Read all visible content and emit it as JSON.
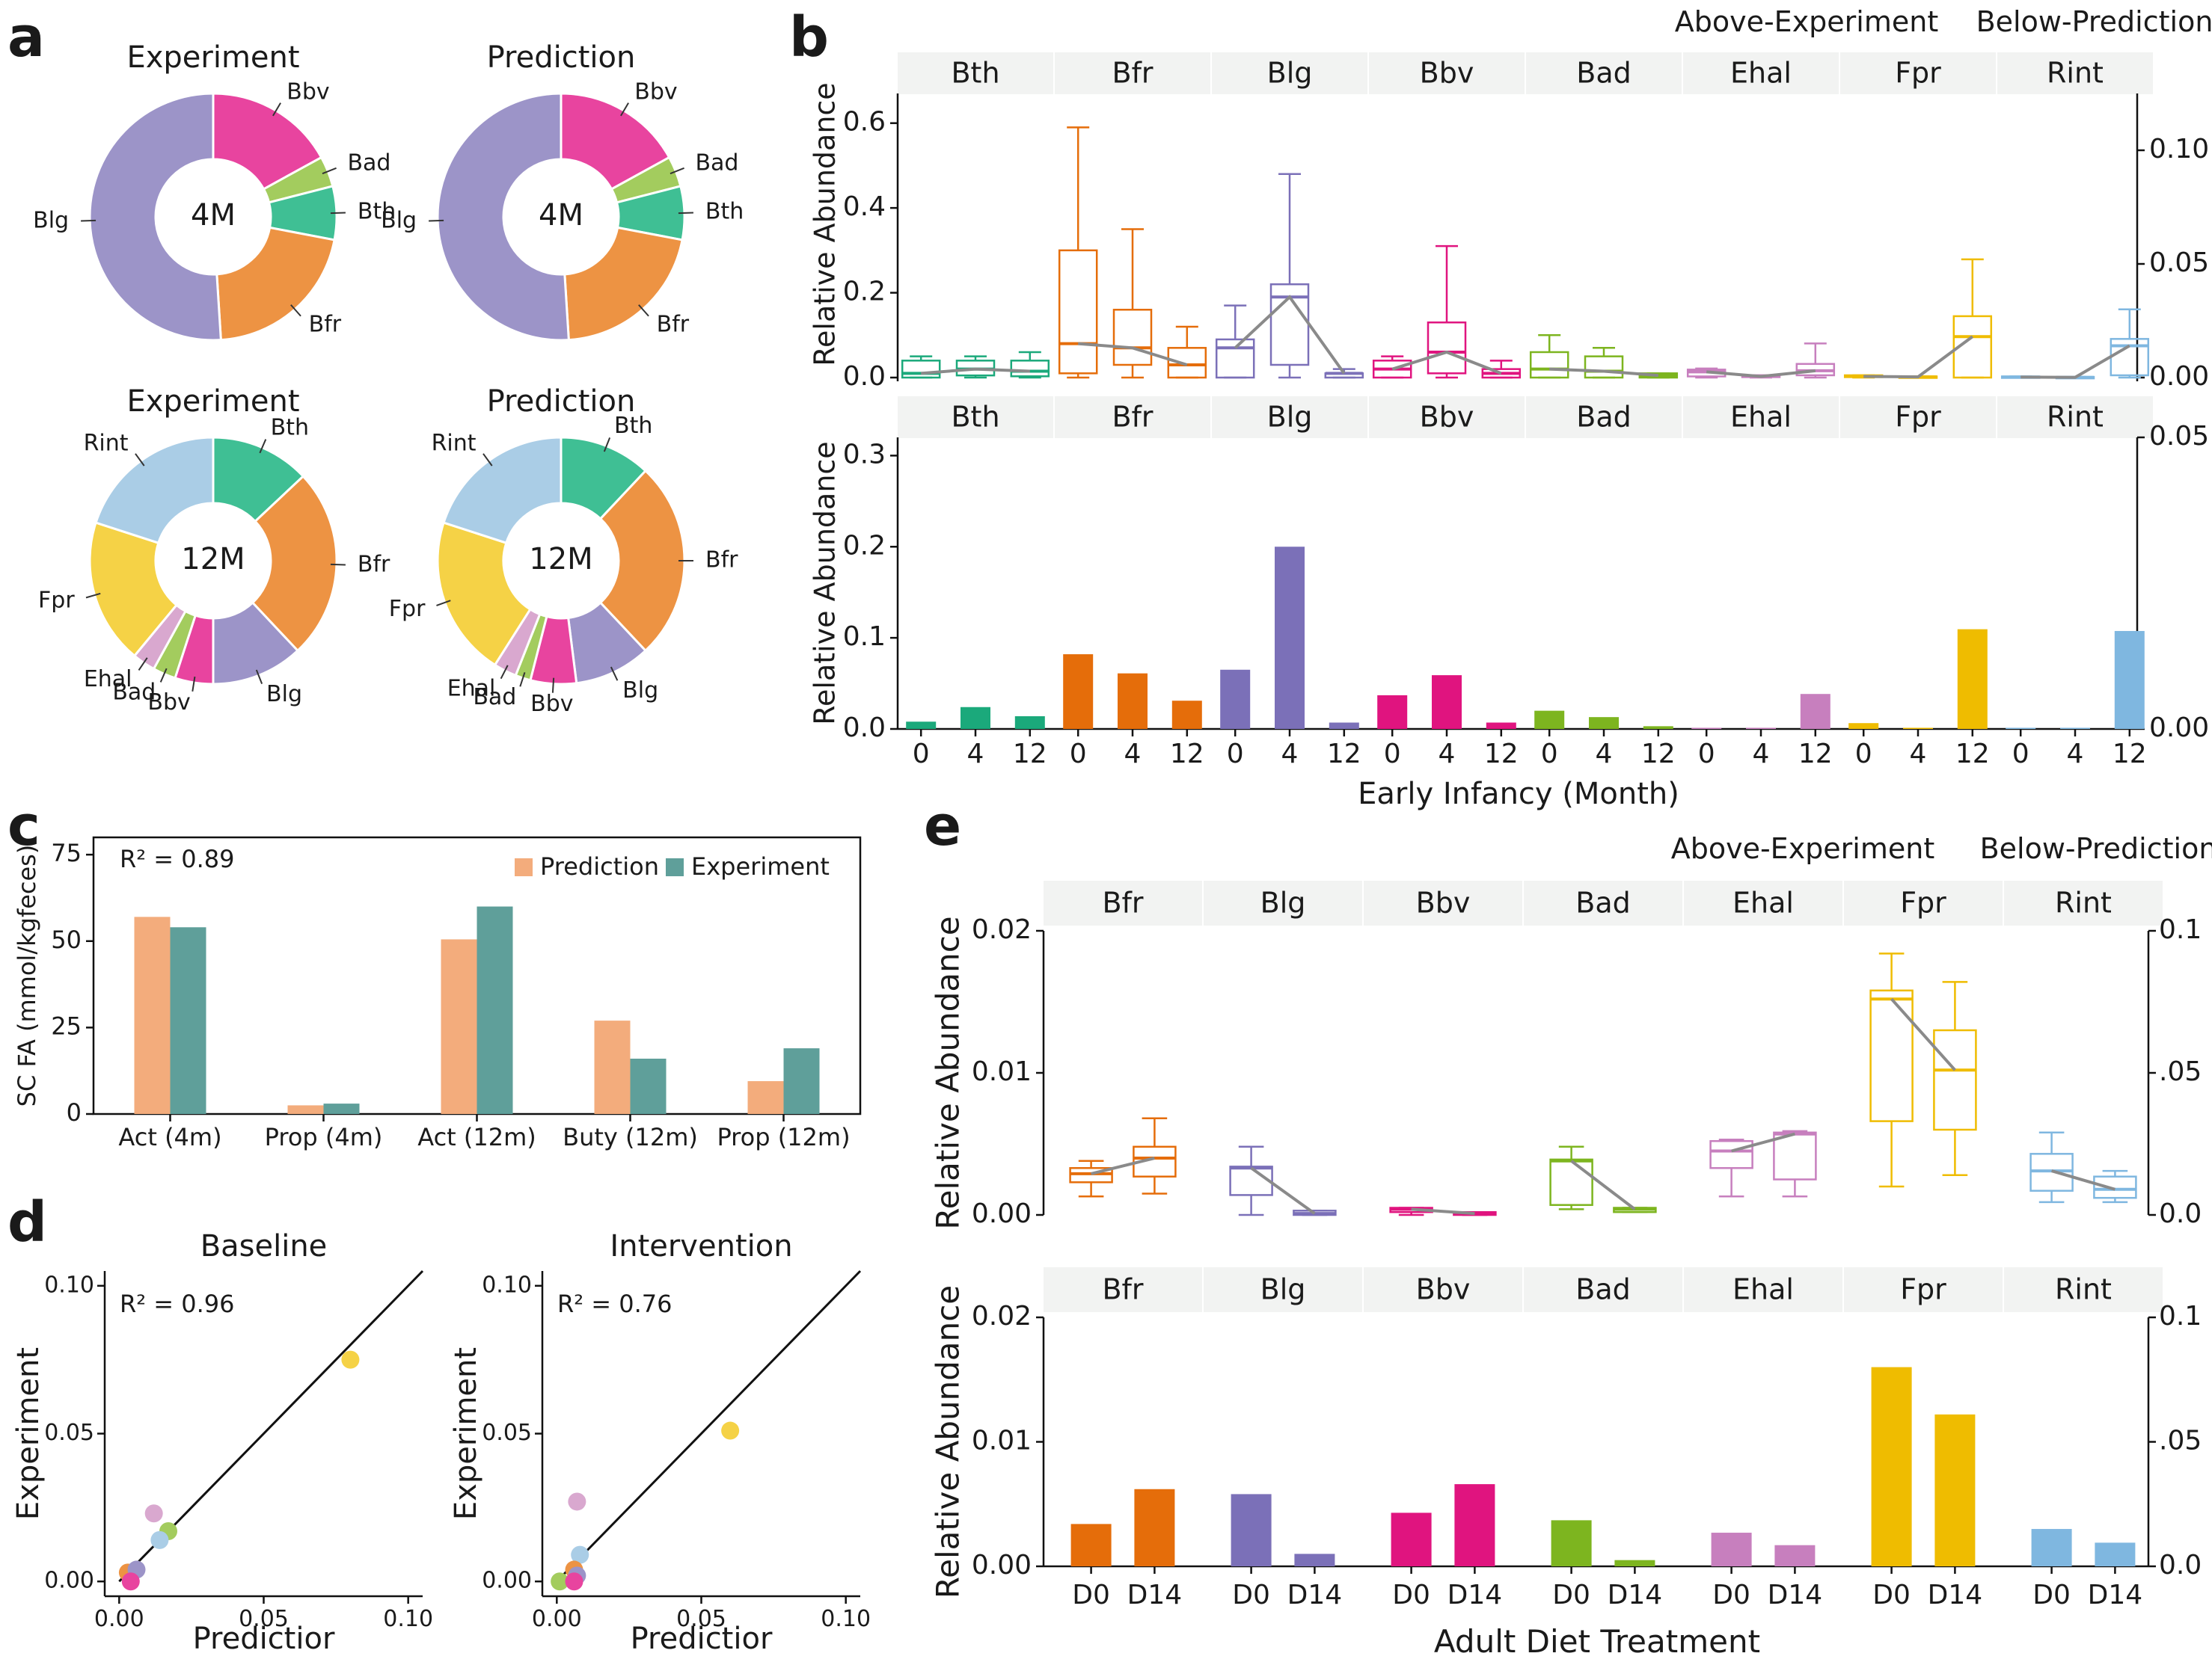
{
  "colors": {
    "Bth": "#3fbf94",
    "Bfr": "#ed9343",
    "Blg": "#9c94c8",
    "Bbv": "#e8449f",
    "Bad": "#a3cc5e",
    "Ehal": "#d9a8cf",
    "Fpr": "#f5d246",
    "Rint": "#aacde6",
    "box": {
      "Bth": "#1ba97b",
      "Bfr": "#e56d0a",
      "Blg": "#7b70b8",
      "Bbv": "#e0147f",
      "Bad": "#7db51f",
      "Ehal": "#c77fbe",
      "Fpr": "#efbc00",
      "Rint": "#7fb7e0"
    },
    "prediction_bar": "#f3ac7c",
    "experiment_bar": "#5f9f9a"
  },
  "panel_labels": {
    "a": "a",
    "b": "b",
    "c": "c",
    "d": "d",
    "e": "e"
  },
  "chart_data": [
    {
      "panel": "a",
      "type": "pie",
      "donuts": [
        {
          "title": "Experiment",
          "center": "4M",
          "labels": [
            "Bbv",
            "Bad",
            "Bth",
            "Bfr",
            "Blg"
          ],
          "values": [
            17,
            4,
            7,
            21,
            51
          ]
        },
        {
          "title": "Prediction",
          "center": "4M",
          "labels": [
            "Bbv",
            "Bad",
            "Bth",
            "Bfr",
            "Blg"
          ],
          "values": [
            17,
            4,
            7,
            21,
            51
          ]
        },
        {
          "title": "Experiment",
          "center": "12M",
          "labels": [
            "Bth",
            "Bfr",
            "Blg",
            "Bbv",
            "Bad",
            "Ehal",
            "Fpr",
            "Rint"
          ],
          "values": [
            13,
            25,
            12,
            5,
            3,
            3,
            19,
            20
          ]
        },
        {
          "title": "Prediction",
          "center": "12M",
          "labels": [
            "Bth",
            "Bfr",
            "Blg",
            "Bbv",
            "Bad",
            "Ehal",
            "Fpr",
            "Rint"
          ],
          "values": [
            12,
            26,
            10,
            6,
            2,
            3,
            21,
            20
          ]
        }
      ]
    },
    {
      "panel": "b",
      "type": "bar",
      "legend_left": "Above-Experiment",
      "legend_right": "Below-Prediction",
      "species": [
        "Bth",
        "Bfr",
        "Blg",
        "Bbv",
        "Bad",
        "Ehal",
        "Fpr",
        "Rint"
      ],
      "categories": [
        "0",
        "4",
        "12"
      ],
      "xlabel": "Early Infancy (Month)",
      "ylabel": "Relative Abundance",
      "top_left_ylim": [
        0,
        0.67
      ],
      "top_left_yticks": [
        "0.0",
        "0.2",
        "0.4",
        "0.6"
      ],
      "top_right_ylim": [
        0,
        0.125
      ],
      "top_right_yticks": [
        "0.00",
        "0.05",
        "0.10"
      ],
      "bottom_left_ylim": [
        0,
        0.32
      ],
      "bottom_left_yticks": [
        "0.0",
        "0.1",
        "0.2",
        "0.3"
      ],
      "bottom_right_ylim": [
        0,
        0.05
      ],
      "bottom_right_yticks": [
        "0.00",
        "0.05"
      ],
      "experiment_boxes": [
        {
          "name": "Bth",
          "median": [
            0.01,
            0.02,
            0.015
          ],
          "q1": [
            0.0,
            0.005,
            0.003
          ],
          "q3": [
            0.04,
            0.04,
            0.04
          ],
          "wlo": [
            0.0,
            0.0,
            0.0
          ],
          "whi": [
            0.05,
            0.05,
            0.06
          ]
        },
        {
          "name": "Bfr",
          "median": [
            0.08,
            0.07,
            0.03
          ],
          "q1": [
            0.01,
            0.03,
            0.0
          ],
          "q3": [
            0.3,
            0.16,
            0.07
          ],
          "wlo": [
            0.0,
            0.0,
            0.0
          ],
          "whi": [
            0.59,
            0.35,
            0.12
          ]
        },
        {
          "name": "Blg",
          "median": [
            0.07,
            0.19,
            0.01
          ],
          "q1": [
            0.0,
            0.03,
            0.0
          ],
          "q3": [
            0.09,
            0.22,
            0.01
          ],
          "wlo": [
            0.0,
            0.0,
            0.0
          ],
          "whi": [
            0.17,
            0.48,
            0.02
          ]
        },
        {
          "name": "Bbv",
          "median": [
            0.02,
            0.06,
            0.01
          ],
          "q1": [
            0.0,
            0.01,
            0.0
          ],
          "q3": [
            0.04,
            0.13,
            0.02
          ],
          "wlo": [
            0.0,
            0.0,
            0.0
          ],
          "whi": [
            0.05,
            0.31,
            0.04
          ]
        },
        {
          "name": "Bad",
          "median": [
            0.02,
            0.015,
            0.005
          ],
          "q1": [
            0.0,
            0.0,
            0.0
          ],
          "q3": [
            0.06,
            0.05,
            0.01
          ],
          "wlo": [
            0.0,
            0.0,
            0.0
          ],
          "whi": [
            0.1,
            0.07,
            0.01
          ]
        },
        {
          "name": "Ehal",
          "median": [
            0.0025,
            0.0005,
            0.003
          ],
          "q1": [
            0.0005,
            0.0002,
            0.001
          ],
          "q3": [
            0.0035,
            0.001,
            0.006
          ],
          "wlo": [
            0.0,
            0.0,
            0.0
          ],
          "whi": [
            0.004,
            0.001,
            0.015
          ]
        },
        {
          "name": "Fpr",
          "median": [
            0.0005,
            0.0003,
            0.018
          ],
          "q1": [
            0.0002,
            0.0001,
            0.0
          ],
          "q3": [
            0.001,
            0.0005,
            0.027
          ],
          "wlo": [
            0.0,
            0.0,
            0.0
          ],
          "whi": [
            0.001,
            0.0005,
            0.052
          ]
        },
        {
          "name": "Rint",
          "median": [
            0.0002,
            0.0001,
            0.014
          ],
          "q1": [
            0.0001,
            0.0,
            0.001
          ],
          "q3": [
            0.0005,
            0.0003,
            0.017
          ],
          "wlo": [
            0.0,
            0.0,
            0.0
          ],
          "whi": [
            0.0005,
            0.0003,
            0.03
          ]
        }
      ],
      "prediction_bars": [
        {
          "name": "Bth",
          "values": [
            0.008,
            0.024,
            0.014
          ]
        },
        {
          "name": "Bfr",
          "values": [
            0.082,
            0.061,
            0.031
          ]
        },
        {
          "name": "Blg",
          "values": [
            0.065,
            0.2,
            0.007
          ]
        },
        {
          "name": "Bbv",
          "values": [
            0.037,
            0.059,
            0.007
          ]
        },
        {
          "name": "Bad",
          "values": [
            0.02,
            0.013,
            0.003
          ]
        },
        {
          "name": "Ehal",
          "values": [
            0.0002,
            0.0002,
            0.006
          ]
        },
        {
          "name": "Fpr",
          "values": [
            0.001,
            0.0002,
            0.0171
          ]
        },
        {
          "name": "Rint",
          "values": [
            0.0002,
            0.0002,
            0.0168
          ]
        }
      ]
    },
    {
      "panel": "c",
      "type": "bar",
      "r2": "R² = 0.89",
      "ylabel": "SC FA (mmol/kgfeces)",
      "ylim": [
        0,
        80
      ],
      "yticks": [
        "0",
        "25",
        "50",
        "75"
      ],
      "categories": [
        "Act (4m)",
        "Prop (4m)",
        "Act (12m)",
        "Buty (12m)",
        "Prop (12m)"
      ],
      "series": [
        {
          "name": "Prediction",
          "values": [
            57,
            2.5,
            50.5,
            27,
            9.5
          ]
        },
        {
          "name": "Experiment",
          "values": [
            54,
            3,
            60,
            16,
            19
          ]
        }
      ]
    },
    {
      "panel": "d",
      "type": "scatter",
      "plots": [
        {
          "title": "Baseline",
          "r2": "R² = 0.96",
          "xlabel": "Predictior",
          "ylabel": "Experiment",
          "points": [
            {
              "group": "Fpr",
              "x": 0.08,
              "y": 0.075
            },
            {
              "group": "Ehal",
              "x": 0.012,
              "y": 0.023
            },
            {
              "group": "Bad",
              "x": 0.017,
              "y": 0.017
            },
            {
              "group": "Rint",
              "x": 0.014,
              "y": 0.014
            },
            {
              "group": "Bfr",
              "x": 0.003,
              "y": 0.003
            },
            {
              "group": "Blg",
              "x": 0.006,
              "y": 0.004
            },
            {
              "group": "Bbv",
              "x": 0.004,
              "y": 0.0
            }
          ]
        },
        {
          "title": "Intervention",
          "r2": "R² = 0.76",
          "xlabel": "Predictior",
          "ylabel": "Experiment",
          "points": [
            {
              "group": "Fpr",
              "x": 0.06,
              "y": 0.051
            },
            {
              "group": "Ehal",
              "x": 0.007,
              "y": 0.027
            },
            {
              "group": "Rint",
              "x": 0.008,
              "y": 0.009
            },
            {
              "group": "Bfr",
              "x": 0.006,
              "y": 0.004
            },
            {
              "group": "Blg",
              "x": 0.007,
              "y": 0.002
            },
            {
              "group": "Bad",
              "x": 0.001,
              "y": 0.0
            },
            {
              "group": "Bbv",
              "x": 0.006,
              "y": 0.0
            }
          ]
        }
      ],
      "xlim": [
        -0.005,
        0.105
      ],
      "ylim": [
        -0.005,
        0.105
      ],
      "xticks": [
        "0.00",
        "0.05",
        "0.10"
      ],
      "yticks": [
        "0.00",
        "0.05",
        "0.10"
      ]
    },
    {
      "panel": "e",
      "type": "bar",
      "legend_left": "Above-Experiment",
      "legend_right": "Below-Prediction",
      "species": [
        "Bfr",
        "Blg",
        "Bbv",
        "Bad",
        "Ehal",
        "Fpr",
        "Rint"
      ],
      "categories": [
        "D0",
        "D14"
      ],
      "xlabel": "Adult Diet Treatment",
      "ylabel": "Relative Abundance",
      "left_ylim": [
        0,
        0.02
      ],
      "left_yticks": [
        "0.00",
        "0.01",
        "0.02"
      ],
      "right_ylim": [
        0,
        0.1
      ],
      "right_yticks": [
        "0.0",
        ".05",
        "0.1"
      ],
      "experiment_boxes": [
        {
          "name": "Bfr",
          "median": [
            0.0029,
            0.004
          ],
          "q1": [
            0.0023,
            0.0027
          ],
          "q3": [
            0.0033,
            0.0048
          ],
          "wlo": [
            0.0013,
            0.0015
          ],
          "whi": [
            0.0038,
            0.0068
          ]
        },
        {
          "name": "Blg",
          "median": [
            0.0033,
            0.0001
          ],
          "q1": [
            0.0014,
            0.0
          ],
          "q3": [
            0.0034,
            0.0003
          ],
          "wlo": [
            0.0,
            0.0
          ],
          "whi": [
            0.0048,
            0.0003
          ]
        },
        {
          "name": "Bbv",
          "median": [
            0.0004,
            0.0001
          ],
          "q1": [
            0.0002,
            0.0
          ],
          "q3": [
            0.0005,
            0.0002
          ],
          "wlo": [
            0.0,
            0.0
          ],
          "whi": [
            0.0005,
            0.0002
          ]
        },
        {
          "name": "Bad",
          "median": [
            0.0038,
            0.0004
          ],
          "q1": [
            0.0007,
            0.0002
          ],
          "q3": [
            0.0039,
            0.0005
          ],
          "wlo": [
            0.0004,
            0.0002
          ],
          "whi": [
            0.0048,
            0.0005
          ]
        },
        {
          "name": "Ehal",
          "median": [
            0.0045,
            0.0057
          ],
          "q1": [
            0.0033,
            0.0025
          ],
          "q3": [
            0.0052,
            0.0058
          ],
          "wlo": [
            0.0013,
            0.0013
          ],
          "whi": [
            0.0053,
            0.0059
          ]
        },
        {
          "name": "Fpr",
          "median": [
            0.076,
            0.051
          ],
          "q1": [
            0.033,
            0.03
          ],
          "q3": [
            0.079,
            0.065
          ],
          "wlo": [
            0.01,
            0.014
          ],
          "whi": [
            0.092,
            0.082
          ]
        },
        {
          "name": "Rint",
          "median": [
            0.0031,
            0.0018
          ],
          "q1": [
            0.0017,
            0.0012
          ],
          "q3": [
            0.0043,
            0.0027
          ],
          "wlo": [
            0.0009,
            0.0009
          ],
          "whi": [
            0.0058,
            0.0031
          ]
        }
      ],
      "prediction_bars": [
        {
          "name": "Bfr",
          "values": [
            0.0034,
            0.0062
          ]
        },
        {
          "name": "Blg",
          "values": [
            0.0058,
            0.001
          ]
        },
        {
          "name": "Bbv",
          "values": [
            0.0043,
            0.0066
          ]
        },
        {
          "name": "Bad",
          "values": [
            0.0037,
            0.0005
          ]
        },
        {
          "name": "Ehal",
          "values": [
            0.0027,
            0.0017
          ]
        },
        {
          "name": "Fpr",
          "values": [
            0.08,
            0.061
          ]
        },
        {
          "name": "Rint",
          "values": [
            0.003,
            0.0019
          ]
        }
      ]
    }
  ]
}
